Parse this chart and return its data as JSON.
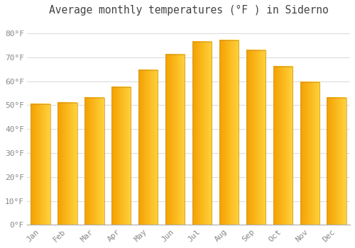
{
  "title": "Average monthly temperatures (°F ) in Siderno",
  "months": [
    "Jan",
    "Feb",
    "Mar",
    "Apr",
    "May",
    "Jun",
    "Jul",
    "Aug",
    "Sep",
    "Oct",
    "Nov",
    "Dec"
  ],
  "values": [
    50.5,
    51.0,
    53.0,
    57.5,
    64.5,
    71.0,
    76.5,
    77.0,
    73.0,
    66.0,
    59.5,
    53.0
  ],
  "bar_color_left": "#F5A000",
  "bar_color_right": "#FFD050",
  "bar_edge_color": "#C8922A",
  "background_color": "#FFFFFF",
  "grid_color": "#DDDDDD",
  "text_color": "#888888",
  "title_color": "#444444",
  "ylim": [
    0,
    85
  ],
  "yticks": [
    0,
    10,
    20,
    30,
    40,
    50,
    60,
    70,
    80
  ],
  "ytick_labels": [
    "0°F",
    "10°F",
    "20°F",
    "30°F",
    "40°F",
    "50°F",
    "60°F",
    "70°F",
    "80°F"
  ],
  "title_fontsize": 10.5,
  "tick_fontsize": 8,
  "bar_width": 0.72
}
